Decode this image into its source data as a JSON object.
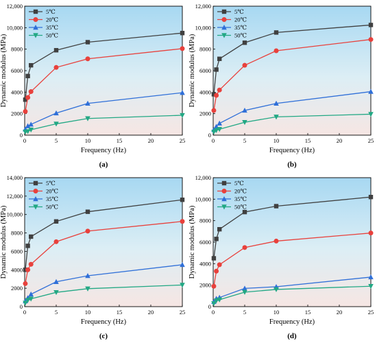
{
  "chart_data": [
    {
      "type": "line",
      "panel_label": "(a)",
      "xlabel": "Frequency (Hz)",
      "ylabel": "Dynamic modulus (MPa)",
      "xlim": [
        0,
        25
      ],
      "ylim": [
        0,
        12000
      ],
      "x_ticks": [
        0,
        5,
        10,
        15,
        20,
        25
      ],
      "y_ticks": [
        0,
        2000,
        4000,
        6000,
        8000,
        10000,
        12000
      ],
      "y_tick_labels": [
        "0",
        "2000",
        "4000",
        "6000",
        "8000",
        "10,000",
        "12,000"
      ],
      "legend_position": "top-left",
      "x": [
        0.1,
        0.5,
        1,
        5,
        10,
        25
      ],
      "series": [
        {
          "name": "5℃",
          "color": "#404040",
          "marker": "square",
          "values": [
            3300,
            5500,
            6500,
            7900,
            8650,
            9500
          ]
        },
        {
          "name": "20℃",
          "color": "#e8413c",
          "marker": "circle",
          "values": [
            2200,
            3500,
            4050,
            6300,
            7100,
            8050
          ]
        },
        {
          "name": "35℃",
          "color": "#2f6fd8",
          "marker": "triangle-up",
          "values": [
            550,
            850,
            1000,
            2050,
            2950,
            3950
          ]
        },
        {
          "name": "50℃",
          "color": "#22a884",
          "marker": "triangle-down",
          "values": [
            300,
            350,
            500,
            1050,
            1550,
            1850
          ]
        }
      ]
    },
    {
      "type": "line",
      "panel_label": "(b)",
      "xlabel": "Frequency (Hz)",
      "ylabel": "Dynamic modulus (MPa)",
      "xlim": [
        0,
        25
      ],
      "ylim": [
        0,
        12000
      ],
      "x_ticks": [
        0,
        5,
        10,
        15,
        20,
        25
      ],
      "y_ticks": [
        0,
        2000,
        4000,
        6000,
        8000,
        10000,
        12000
      ],
      "y_tick_labels": [
        "0",
        "2000",
        "4000",
        "6000",
        "8000",
        "10,000",
        "12,000"
      ],
      "legend_position": "top-left",
      "x": [
        0.1,
        0.5,
        1,
        5,
        10,
        25
      ],
      "series": [
        {
          "name": "5℃",
          "color": "#404040",
          "marker": "square",
          "values": [
            3800,
            6100,
            7100,
            8600,
            9550,
            10250
          ]
        },
        {
          "name": "20℃",
          "color": "#e8413c",
          "marker": "circle",
          "values": [
            2300,
            3700,
            4200,
            6500,
            7850,
            8900
          ]
        },
        {
          "name": "35℃",
          "color": "#2f6fd8",
          "marker": "triangle-up",
          "values": [
            500,
            800,
            1100,
            2300,
            2950,
            4050
          ]
        },
        {
          "name": "50℃",
          "color": "#22a884",
          "marker": "triangle-down",
          "values": [
            300,
            450,
            550,
            1200,
            1700,
            1950
          ]
        }
      ]
    },
    {
      "type": "line",
      "panel_label": "(c)",
      "xlabel": "Frequency (Hz)",
      "ylabel": "Dynamic modulus (MPa)",
      "xlim": [
        0,
        25
      ],
      "ylim": [
        0,
        14000
      ],
      "x_ticks": [
        0,
        5,
        10,
        15,
        20,
        25
      ],
      "y_ticks": [
        0,
        2000,
        4000,
        6000,
        8000,
        10000,
        12000,
        14000
      ],
      "y_tick_labels": [
        "0",
        "2000",
        "4000",
        "6000",
        "8000",
        "10,000",
        "12,000",
        "14,000"
      ],
      "legend_position": "top-left",
      "x": [
        0.1,
        0.5,
        1,
        5,
        10,
        25
      ],
      "series": [
        {
          "name": "5℃",
          "color": "#404040",
          "marker": "square",
          "values": [
            4000,
            6600,
            7600,
            9250,
            10300,
            11600
          ]
        },
        {
          "name": "20℃",
          "color": "#e8413c",
          "marker": "circle",
          "values": [
            2500,
            4000,
            4600,
            7050,
            8200,
            9250
          ]
        },
        {
          "name": "35℃",
          "color": "#2f6fd8",
          "marker": "triangle-up",
          "values": [
            600,
            950,
            1350,
            2700,
            3350,
            4550
          ]
        },
        {
          "name": "50℃",
          "color": "#22a884",
          "marker": "triangle-down",
          "values": [
            400,
            700,
            850,
            1550,
            1950,
            2350
          ]
        }
      ]
    },
    {
      "type": "line",
      "panel_label": "(d)",
      "xlabel": "Frequency (Hz)",
      "ylabel": "Dynamic modulus (MPa)",
      "xlim": [
        0,
        25
      ],
      "ylim": [
        0,
        12000
      ],
      "x_ticks": [
        0,
        5,
        10,
        15,
        20,
        25
      ],
      "y_ticks": [
        0,
        2000,
        4000,
        6000,
        8000,
        10000,
        12000
      ],
      "y_tick_labels": [
        "0",
        "2000",
        "4000",
        "6000",
        "8000",
        "10,000",
        "12,000"
      ],
      "legend_position": "top-left",
      "x": [
        0.1,
        0.5,
        1,
        5,
        10,
        25
      ],
      "series": [
        {
          "name": "5℃",
          "color": "#404040",
          "marker": "square",
          "values": [
            4500,
            6300,
            7200,
            8800,
            9350,
            10200
          ]
        },
        {
          "name": "20℃",
          "color": "#e8413c",
          "marker": "circle",
          "values": [
            1900,
            3300,
            3900,
            5500,
            6100,
            6850
          ]
        },
        {
          "name": "35℃",
          "color": "#2f6fd8",
          "marker": "triangle-up",
          "values": [
            450,
            750,
            850,
            1700,
            1850,
            2750
          ]
        },
        {
          "name": "50℃",
          "color": "#22a884",
          "marker": "triangle-down",
          "values": [
            300,
            550,
            650,
            1350,
            1600,
            1900
          ]
        }
      ]
    }
  ]
}
